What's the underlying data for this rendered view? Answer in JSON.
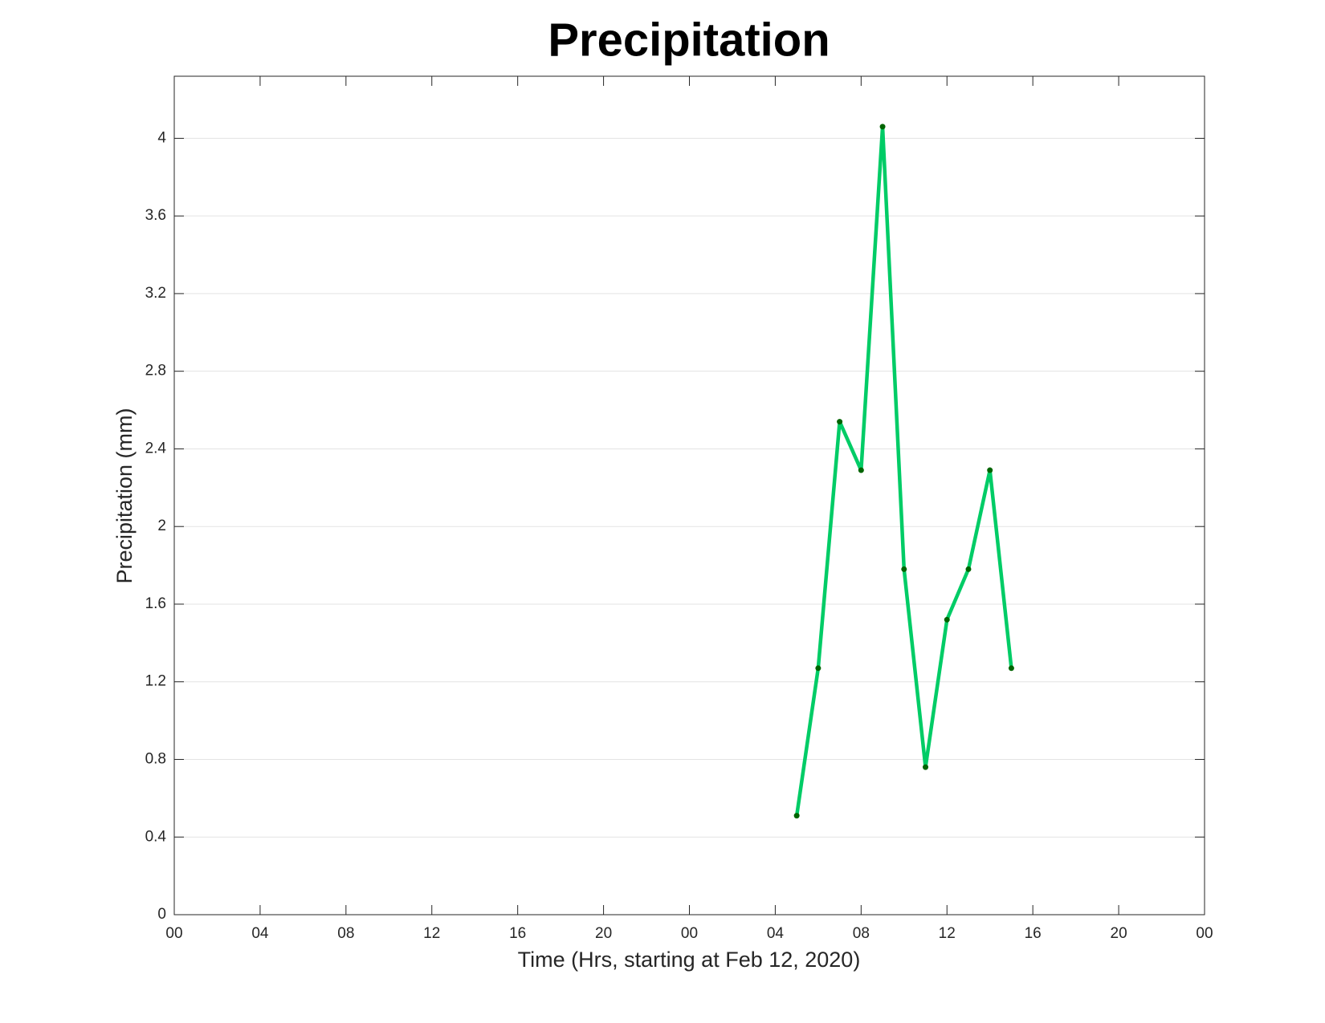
{
  "chart_data": {
    "type": "line",
    "title": "Precipitation",
    "x_label": "Time (Hrs, starting at Feb 12, 2020)",
    "y_label": "Precipitation (mm)",
    "x": [
      29,
      30,
      31,
      32,
      33,
      34,
      35,
      36,
      37,
      38,
      39
    ],
    "series": [
      {
        "name": "Precipitation",
        "color": "#00cc66",
        "marker_color": "#006400",
        "values": [
          0.51,
          1.27,
          2.54,
          2.29,
          4.06,
          1.78,
          0.76,
          1.52,
          1.78,
          2.29,
          1.27
        ]
      }
    ],
    "xlim": [
      0,
      48
    ],
    "xticks": [
      {
        "value": 0,
        "label": "00"
      },
      {
        "value": 4,
        "label": "04"
      },
      {
        "value": 8,
        "label": "08"
      },
      {
        "value": 12,
        "label": "12"
      },
      {
        "value": 16,
        "label": "16"
      },
      {
        "value": 20,
        "label": "20"
      },
      {
        "value": 24,
        "label": "00"
      },
      {
        "value": 28,
        "label": "04"
      },
      {
        "value": 32,
        "label": "08"
      },
      {
        "value": 36,
        "label": "12"
      },
      {
        "value": 40,
        "label": "16"
      },
      {
        "value": 44,
        "label": "20"
      },
      {
        "value": 48,
        "label": "00"
      }
    ],
    "ylim": [
      0,
      4.32
    ],
    "yticks": [
      0,
      0.4,
      0.8,
      1.2,
      1.6,
      2,
      2.4,
      2.8,
      3.2,
      3.6,
      4
    ],
    "grid": "y"
  }
}
